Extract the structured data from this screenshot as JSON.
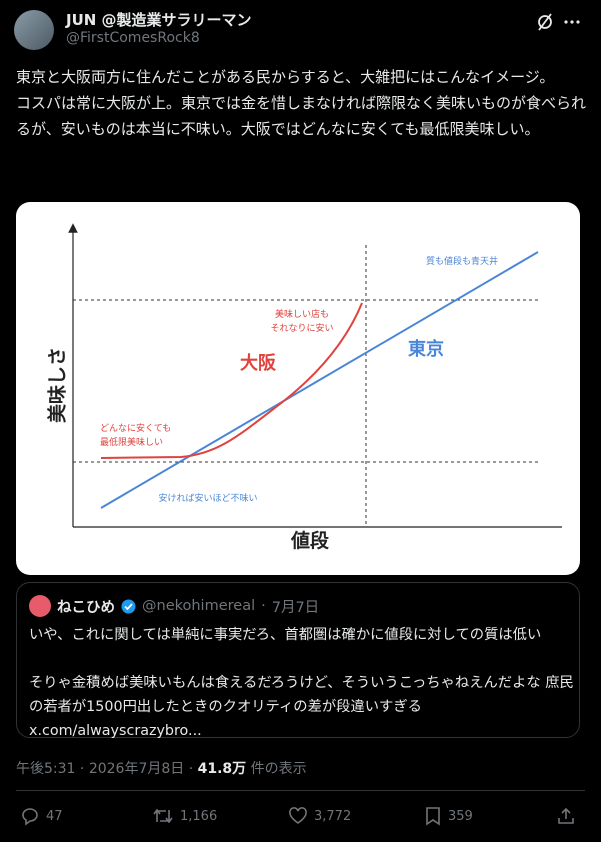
{
  "post": {
    "author": {
      "name": "JUN @製造業サラリーマン",
      "handle": "@FirstComesRock8"
    },
    "body": [
      "東京と大阪両方に住んだことがある民からすると、大雑把にはこんなイメージ。",
      "コスパは常に大阪が上。東京では金を惜しまなければ際限なく美味いものが食べられるが、安いものは本当に不味い。大阪ではどんなに安くても最低限美味しい。"
    ],
    "image": {
      "y_axis": "美味しさ",
      "x_axis": "値段",
      "osaka": "大阪",
      "tokyo": "東京",
      "tokyo_top": "質も値段も青天井",
      "osaka_top": [
        "美味しい店も",
        "それなりに安い"
      ],
      "osaka_bottom": [
        "どんなに安くても",
        "最低限美味しい"
      ],
      "tokyo_bottom": "安ければ安いほど不味い"
    },
    "quote": {
      "name": "ねこひめ",
      "handle": "@nekohimereal",
      "date": "7月7日",
      "body": [
        "いや、これに関しては単純に事実だろ、首都圏は確かに値段に対しての質は低い",
        "そりゃ金積めば美味いもんは食えるだろうけど、そういうこっちゃねえんだよな 庶民の若者が1500円出したときのクオリティの差が段違いすぎる"
      ],
      "link": "x.com/alwayscrazybro..."
    },
    "meta": {
      "time": "午後5:31",
      "date": "2026年7月8日",
      "views": "41.8万",
      "views_label": "件の表示"
    },
    "actions": {
      "replies": "47",
      "reposts": "1,166",
      "likes": "3,772",
      "bookmarks": "359"
    }
  }
}
